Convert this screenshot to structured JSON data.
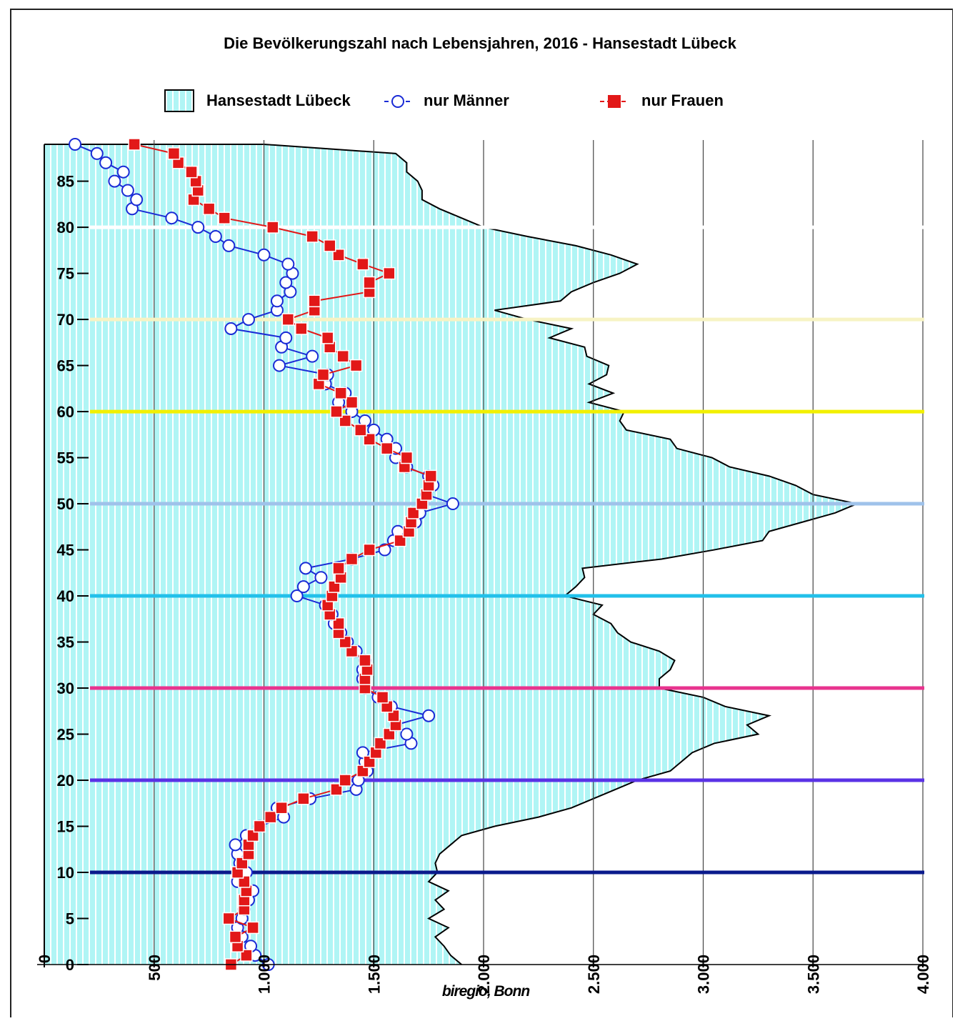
{
  "chart_data": {
    "type": "line",
    "title": "Die Bevölkerungszahl nach Lebensjahren, 2016 - Hansestadt Lübeck",
    "orientation": "horizontal",
    "x_axis": {
      "min": 0,
      "max": 4000,
      "ticks": [
        0,
        500,
        1000,
        1500,
        2000,
        2500,
        3000,
        3500,
        4000
      ],
      "tick_labels": [
        "0",
        "500",
        "1.000",
        "1.500",
        "2.000",
        "2.500",
        "3.000",
        "3.500",
        "4.000"
      ]
    },
    "y_axis": {
      "min": 0,
      "max": 89,
      "ticks": [
        0,
        5,
        10,
        15,
        20,
        25,
        30,
        35,
        40,
        45,
        50,
        55,
        60,
        65,
        70,
        75,
        80,
        85
      ]
    },
    "legend_placement": "top",
    "grid": "vertical",
    "source": "biregio, Bonn",
    "reference_lines": [
      {
        "age": 10,
        "color": "#0a1a8c"
      },
      {
        "age": 20,
        "color": "#5a32e6"
      },
      {
        "age": 30,
        "color": "#e8338e"
      },
      {
        "age": 40,
        "color": "#22c0ea"
      },
      {
        "age": 50,
        "color": "#9fc2ea"
      },
      {
        "age": 60,
        "color": "#f2f000"
      },
      {
        "age": 70,
        "color": "#f7f3c4"
      },
      {
        "age": 80,
        "color": "#ffffff"
      }
    ],
    "series": [
      {
        "name": "Hansestadt Lübeck",
        "style": "area",
        "color": "#b0f5f5",
        "ages": [
          0,
          1,
          2,
          3,
          4,
          5,
          6,
          7,
          8,
          9,
          10,
          11,
          12,
          13,
          14,
          15,
          16,
          17,
          18,
          19,
          20,
          21,
          22,
          23,
          24,
          25,
          26,
          27,
          28,
          29,
          30,
          31,
          32,
          33,
          34,
          35,
          36,
          37,
          38,
          39,
          40,
          41,
          42,
          43,
          44,
          45,
          46,
          47,
          48,
          49,
          50,
          51,
          52,
          53,
          54,
          55,
          56,
          57,
          58,
          59,
          60,
          61,
          62,
          63,
          64,
          65,
          66,
          67,
          68,
          69,
          70,
          71,
          72,
          73,
          74,
          75,
          76,
          77,
          78,
          79,
          80,
          81,
          82,
          83,
          84,
          85,
          86,
          87,
          88,
          89
        ],
        "values": [
          1900,
          1850,
          1820,
          1780,
          1840,
          1750,
          1820,
          1780,
          1840,
          1750,
          1790,
          1780,
          1800,
          1850,
          1900,
          2050,
          2250,
          2400,
          2500,
          2600,
          2700,
          2850,
          2900,
          2950,
          3050,
          3250,
          3200,
          3300,
          3100,
          3000,
          2800,
          2800,
          2850,
          2870,
          2800,
          2670,
          2610,
          2580,
          2500,
          2540,
          2370,
          2420,
          2460,
          2450,
          2810,
          3050,
          3270,
          3300,
          3450,
          3600,
          3700,
          3500,
          3420,
          3300,
          3120,
          3040,
          2880,
          2850,
          2650,
          2620,
          2640,
          2480,
          2590,
          2480,
          2560,
          2570,
          2470,
          2460,
          2300,
          2400,
          2200,
          2050,
          2350,
          2400,
          2500,
          2620,
          2700,
          2580,
          2420,
          2200,
          2000,
          1900,
          1800,
          1720,
          1720,
          1700,
          1650,
          1650,
          1600,
          1000
        ]
      },
      {
        "name": "nur Männer",
        "style": "line-open-circle",
        "color": "#1a2bd6",
        "ages": [
          0,
          1,
          2,
          3,
          4,
          5,
          6,
          7,
          8,
          9,
          10,
          11,
          12,
          13,
          14,
          15,
          16,
          17,
          18,
          19,
          20,
          21,
          22,
          23,
          24,
          25,
          26,
          27,
          28,
          29,
          30,
          31,
          32,
          33,
          34,
          35,
          36,
          37,
          38,
          39,
          40,
          41,
          42,
          43,
          44,
          45,
          46,
          47,
          48,
          49,
          50,
          51,
          52,
          53,
          54,
          55,
          56,
          57,
          58,
          59,
          60,
          61,
          62,
          63,
          64,
          65,
          66,
          67,
          68,
          69,
          70,
          71,
          72,
          73,
          74,
          75,
          76,
          77,
          78,
          79,
          80,
          81,
          82,
          83,
          84,
          85,
          86,
          87,
          88,
          89
        ],
        "values": [
          1020,
          960,
          940,
          900,
          880,
          900,
          910,
          930,
          950,
          880,
          920,
          890,
          880,
          870,
          920,
          980,
          1090,
          1060,
          1210,
          1420,
          1430,
          1470,
          1460,
          1450,
          1670,
          1650,
          1600,
          1750,
          1580,
          1520,
          1460,
          1450,
          1450,
          1460,
          1420,
          1380,
          1350,
          1320,
          1310,
          1280,
          1150,
          1180,
          1260,
          1190,
          1400,
          1550,
          1590,
          1610,
          1690,
          1710,
          1860,
          1740,
          1770,
          1750,
          1650,
          1600,
          1600,
          1560,
          1500,
          1460,
          1400,
          1340,
          1370,
          1280,
          1290,
          1070,
          1220,
          1080,
          1100,
          850,
          930,
          1060,
          1060,
          1120,
          1100,
          1130,
          1110,
          1000,
          840,
          780,
          700,
          580,
          400,
          420,
          380,
          320,
          360,
          280,
          240,
          140
        ]
      },
      {
        "name": "nur Frauen",
        "style": "line-filled-square",
        "color": "#e21818",
        "ages": [
          0,
          1,
          2,
          3,
          4,
          5,
          6,
          7,
          8,
          9,
          10,
          11,
          12,
          13,
          14,
          15,
          16,
          17,
          18,
          19,
          20,
          21,
          22,
          23,
          24,
          25,
          26,
          27,
          28,
          29,
          30,
          31,
          32,
          33,
          34,
          35,
          36,
          37,
          38,
          39,
          40,
          41,
          42,
          43,
          44,
          45,
          46,
          47,
          48,
          49,
          50,
          51,
          52,
          53,
          54,
          55,
          56,
          57,
          58,
          59,
          60,
          61,
          62,
          63,
          64,
          65,
          66,
          67,
          68,
          69,
          70,
          71,
          72,
          73,
          74,
          75,
          76,
          77,
          78,
          79,
          80,
          81,
          82,
          83,
          84,
          85,
          86,
          87,
          88,
          89
        ],
        "values": [
          850,
          920,
          880,
          870,
          950,
          840,
          910,
          910,
          920,
          910,
          880,
          900,
          930,
          930,
          950,
          980,
          1030,
          1080,
          1180,
          1330,
          1370,
          1450,
          1480,
          1510,
          1530,
          1570,
          1600,
          1590,
          1560,
          1540,
          1460,
          1460,
          1470,
          1460,
          1400,
          1370,
          1340,
          1340,
          1300,
          1290,
          1310,
          1320,
          1350,
          1340,
          1400,
          1480,
          1620,
          1660,
          1670,
          1680,
          1720,
          1740,
          1750,
          1760,
          1640,
          1650,
          1560,
          1480,
          1440,
          1370,
          1330,
          1400,
          1350,
          1250,
          1270,
          1420,
          1360,
          1300,
          1290,
          1170,
          1110,
          1230,
          1230,
          1480,
          1480,
          1570,
          1450,
          1340,
          1300,
          1220,
          1040,
          820,
          750,
          680,
          700,
          690,
          670,
          610,
          590,
          410
        ]
      }
    ]
  }
}
